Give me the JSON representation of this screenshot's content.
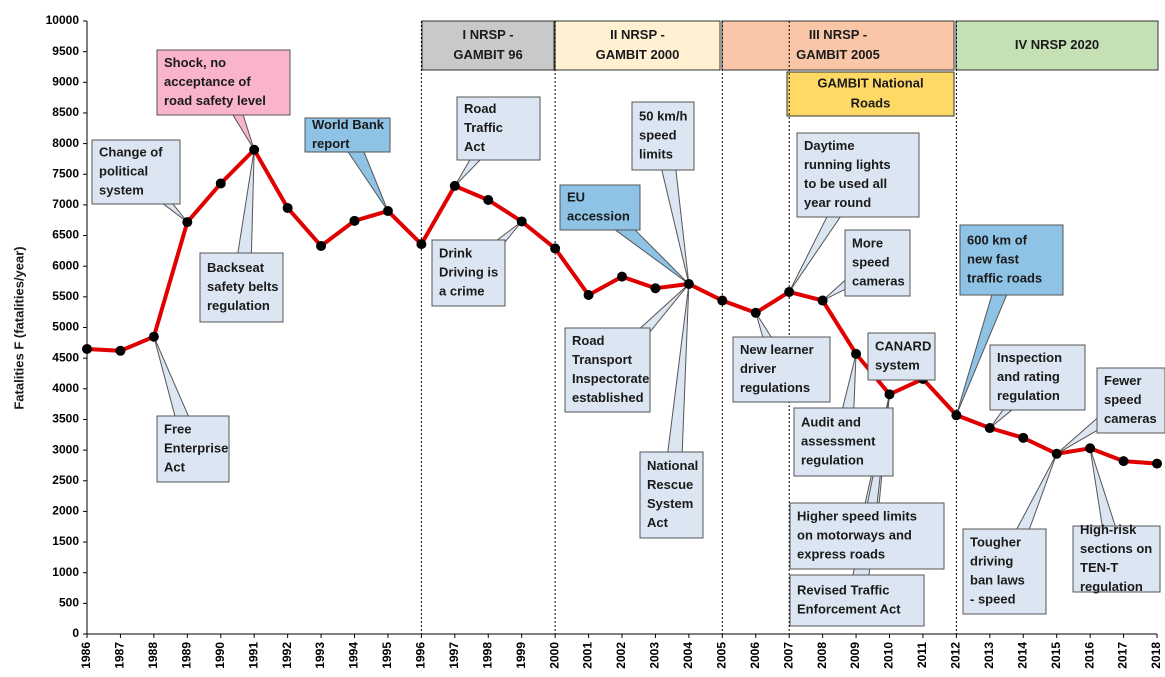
{
  "chart_data": {
    "type": "line",
    "ylabel": "Fatalities F (fatalities/year)",
    "x": [
      1986,
      1987,
      1988,
      1989,
      1990,
      1991,
      1992,
      1993,
      1994,
      1995,
      1996,
      1997,
      1998,
      1999,
      2000,
      2001,
      2002,
      2003,
      2004,
      2005,
      2006,
      2007,
      2008,
      2009,
      2010,
      2011,
      2012,
      2013,
      2014,
      2015,
      2016,
      2017,
      2018
    ],
    "values": [
      4650,
      4620,
      4850,
      6720,
      7350,
      7900,
      6950,
      6330,
      6740,
      6900,
      6360,
      7310,
      7080,
      6730,
      6290,
      5530,
      5830,
      5640,
      5710,
      5440,
      5240,
      5580,
      5440,
      4570,
      3910,
      4160,
      3570,
      3360,
      3200,
      2940,
      3030,
      2820,
      2780
    ],
    "color": "#e00000",
    "marker_color": "#000000",
    "xlim": [
      1986,
      2018
    ],
    "xticks": [
      1986,
      1987,
      1988,
      1989,
      1990,
      1991,
      1992,
      1993,
      1994,
      1995,
      1996,
      1997,
      1998,
      1999,
      2000,
      2001,
      2002,
      2003,
      2004,
      2005,
      2006,
      2007,
      2008,
      2009,
      2010,
      2011,
      2012,
      2013,
      2014,
      2015,
      2016,
      2017,
      2018
    ],
    "ylim": [
      0,
      10000
    ],
    "yticks": [
      0,
      500,
      1000,
      1500,
      2000,
      2500,
      3000,
      3500,
      4000,
      4500,
      5000,
      5500,
      6000,
      6500,
      7000,
      7500,
      8000,
      8500,
      9000,
      9500,
      10000
    ],
    "periods": [
      {
        "lines": [
          "I NRSP -",
          "GAMBIT 96"
        ],
        "color": "#c9c9c9"
      },
      {
        "lines": [
          "II NRSP -",
          "GAMBIT 2000"
        ],
        "color": "#fff0d2"
      },
      {
        "lines": [
          "III NRSP -",
          "GAMBIT 2005"
        ],
        "color": "#f9c7a8"
      },
      {
        "lines": [
          "GAMBIT National",
          "Roads"
        ],
        "color": "#ffd966"
      },
      {
        "lines": [
          "IV NRSP 2020"
        ],
        "color": "#c5e0b4"
      }
    ],
    "annotations": [
      {
        "lines": [
          "Change of",
          "political",
          "system"
        ],
        "color": "#dce6f2"
      },
      {
        "lines": [
          "Shock, no",
          "acceptance of",
          "road safety level"
        ],
        "color": "#f9b4cb"
      },
      {
        "lines": [
          "World Bank",
          "report"
        ],
        "color": "#8ec3e6"
      },
      {
        "lines": [
          "Backseat",
          "safety belts",
          "regulation"
        ],
        "color": "#dce6f2"
      },
      {
        "lines": [
          "Free",
          "Enterprise",
          "Act"
        ],
        "color": "#dce6f2"
      },
      {
        "lines": [
          "Road",
          "Traffic",
          "Act"
        ],
        "color": "#dce6f2"
      },
      {
        "lines": [
          "Drink",
          "Driving is",
          "a crime"
        ],
        "color": "#dce6f2"
      },
      {
        "lines": [
          "50 km/h",
          "speed",
          "limits"
        ],
        "color": "#dce6f2"
      },
      {
        "lines": [
          "EU",
          "accession"
        ],
        "color": "#8ec3e6"
      },
      {
        "lines": [
          "Road",
          "Transport",
          "Inspectorate",
          "established"
        ],
        "color": "#dce6f2"
      },
      {
        "lines": [
          "National",
          "Rescue",
          "System",
          "Act"
        ],
        "color": "#dce6f2"
      },
      {
        "lines": [
          "Daytime",
          "running lights",
          "to be used all",
          "year round"
        ],
        "color": "#dce6f2"
      },
      {
        "lines": [
          "More",
          "speed",
          "cameras"
        ],
        "color": "#dce6f2"
      },
      {
        "lines": [
          "New learner",
          "driver",
          "regulations"
        ],
        "color": "#dce6f2"
      },
      {
        "lines": [
          "CANARD",
          "system"
        ],
        "color": "#dce6f2"
      },
      {
        "lines": [
          "Audit and",
          "assessment",
          "regulation"
        ],
        "color": "#dce6f2"
      },
      {
        "lines": [
          "Higher speed limits",
          "on motorways and",
          "express roads"
        ],
        "color": "#dce6f2"
      },
      {
        "lines": [
          "Revised Traffic",
          "Enforcement Act"
        ],
        "color": "#dce6f2"
      },
      {
        "lines": [
          "600 km of",
          "new fast",
          "traffic roads"
        ],
        "color": "#8ec3e6"
      },
      {
        "lines": [
          "Inspection",
          "and rating",
          "regulation"
        ],
        "color": "#dce6f2"
      },
      {
        "lines": [
          "Fewer",
          "speed",
          "cameras"
        ],
        "color": "#dce6f2"
      },
      {
        "lines": [
          "Tougher",
          "driving",
          "ban laws",
          "- speed"
        ],
        "color": "#dce6f2"
      },
      {
        "lines": [
          "High-risk",
          "sections on",
          "TEN-T",
          "regulation"
        ],
        "color": "#dce6f2"
      }
    ]
  }
}
